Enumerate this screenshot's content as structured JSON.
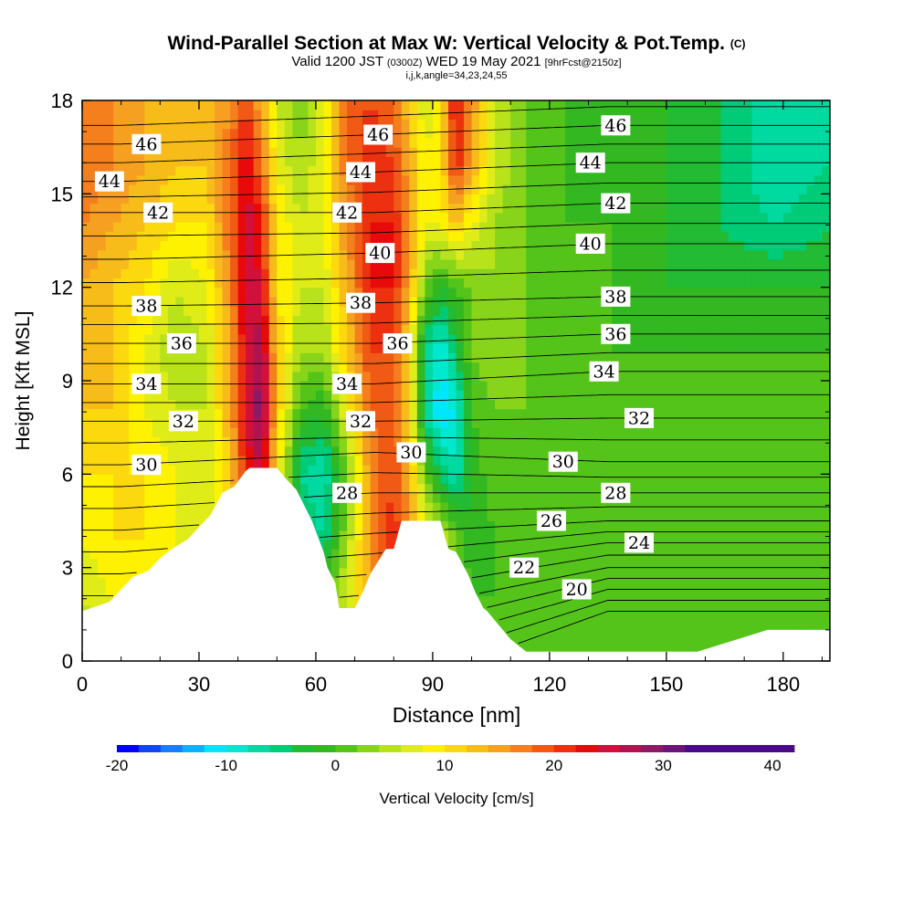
{
  "header": {
    "title": "Wind-Parallel Section at Max W: Vertical Velocity & Pot.Temp.",
    "title_units": "(C)",
    "valid_prefix": "Valid 1200 JST",
    "valid_utc": "(0300Z)",
    "valid_date": "WED 19 May 2021",
    "forecast_tag": "[9hrFcst@2150z]",
    "indices": "i,j,k,angle=34,23,24,55"
  },
  "chart_data": {
    "type": "heatmap",
    "title": "Wind-Parallel Section at Max W: Vertical Velocity & Pot.Temp.",
    "xlabel": "Distance [nm]",
    "ylabel": "Height [Kft MSL]",
    "xlim": [
      0,
      192
    ],
    "ylim": [
      0,
      18
    ],
    "x_ticks": [
      0,
      30,
      60,
      90,
      120,
      150,
      180
    ],
    "y_ticks": [
      0,
      3,
      6,
      9,
      12,
      15,
      18
    ],
    "colorbar": {
      "label": "Vertical Velocity [cm/s]",
      "range": [
        -20,
        42
      ],
      "step": 2,
      "tick_values": [
        -20,
        -10,
        0,
        10,
        20,
        30,
        40
      ],
      "tick_labels": [
        "-20",
        "-10",
        "0",
        "10",
        "20",
        "30",
        "40"
      ],
      "colors": [
        "#0000ff",
        "#1144ff",
        "#1a7dff",
        "#10b0ff",
        "#00e6ff",
        "#00e8d0",
        "#00d9a0",
        "#00cc77",
        "#22bb33",
        "#33b822",
        "#55c41a",
        "#88d41a",
        "#b8e21a",
        "#e0ec18",
        "#fff200",
        "#fcd80f",
        "#f8bc1a",
        "#f5a020",
        "#f57f1c",
        "#f05a14",
        "#ec3010",
        "#e80a0a",
        "#d2103c",
        "#b01450",
        "#8c1a64",
        "#6c1478",
        "#4a0a8a"
      ]
    },
    "vertical_velocity_cm_s": {
      "x_nm": [
        0,
        8,
        16,
        24,
        32,
        38,
        42,
        46,
        50,
        56,
        62,
        68,
        74,
        80,
        84,
        88,
        92,
        96,
        100,
        106,
        114,
        124,
        136,
        150,
        164,
        178,
        192
      ],
      "z_kft": [
        0,
        2,
        4,
        6,
        8,
        10,
        12,
        14,
        16,
        18
      ],
      "values": [
        [
          4,
          6,
          8,
          8,
          5,
          6,
          10,
          14,
          8,
          4,
          6,
          8,
          12,
          18,
          14,
          10,
          10,
          6,
          2,
          2,
          2,
          2,
          0,
          0,
          0,
          0,
          0
        ],
        [
          6,
          8,
          10,
          8,
          6,
          8,
          14,
          18,
          10,
          2,
          2,
          6,
          14,
          22,
          18,
          10,
          8,
          4,
          0,
          0,
          0,
          0,
          0,
          0,
          0,
          0,
          0
        ],
        [
          8,
          10,
          10,
          8,
          6,
          10,
          18,
          22,
          10,
          -4,
          -6,
          4,
          16,
          22,
          16,
          8,
          6,
          2,
          -2,
          0,
          0,
          0,
          0,
          0,
          0,
          0,
          0
        ],
        [
          10,
          10,
          10,
          8,
          6,
          12,
          22,
          26,
          10,
          -6,
          -8,
          2,
          16,
          20,
          14,
          2,
          -4,
          -8,
          -2,
          2,
          0,
          0,
          0,
          0,
          0,
          0,
          0
        ],
        [
          12,
          12,
          8,
          6,
          6,
          14,
          24,
          30,
          12,
          0,
          -2,
          8,
          18,
          20,
          10,
          -6,
          -12,
          -10,
          0,
          2,
          2,
          0,
          0,
          0,
          0,
          0,
          0
        ],
        [
          12,
          12,
          8,
          4,
          6,
          14,
          24,
          28,
          12,
          4,
          4,
          12,
          20,
          20,
          10,
          -6,
          -10,
          -4,
          2,
          4,
          2,
          0,
          0,
          0,
          0,
          0,
          0
        ],
        [
          14,
          12,
          10,
          6,
          8,
          16,
          26,
          24,
          10,
          6,
          6,
          14,
          22,
          22,
          14,
          2,
          -2,
          0,
          2,
          4,
          2,
          0,
          0,
          -2,
          -2,
          -2,
          -2
        ],
        [
          16,
          14,
          12,
          10,
          10,
          18,
          26,
          22,
          10,
          6,
          8,
          16,
          22,
          22,
          16,
          8,
          8,
          12,
          8,
          4,
          2,
          0,
          0,
          -2,
          -4,
          -6,
          -4
        ],
        [
          18,
          16,
          14,
          12,
          12,
          18,
          24,
          18,
          8,
          4,
          8,
          18,
          22,
          20,
          14,
          8,
          10,
          22,
          14,
          6,
          2,
          0,
          -2,
          -2,
          -4,
          -8,
          -6
        ],
        [
          16,
          16,
          14,
          12,
          12,
          16,
          20,
          14,
          6,
          2,
          8,
          18,
          20,
          18,
          12,
          6,
          10,
          24,
          16,
          6,
          2,
          0,
          0,
          -2,
          -4,
          -8,
          -6
        ]
      ]
    },
    "terrain_kft": {
      "x_nm": [
        0,
        7,
        10,
        13,
        17,
        20,
        23,
        27,
        30,
        33,
        36,
        39,
        42,
        43,
        50,
        52,
        55,
        57,
        59,
        62,
        63,
        65,
        66,
        70,
        72,
        74,
        76,
        78,
        80,
        82,
        87,
        92,
        94,
        96,
        99,
        101,
        103,
        104,
        106,
        108,
        110,
        114,
        158,
        176,
        192
      ],
      "z": [
        1.6,
        1.9,
        2.3,
        2.7,
        2.9,
        3.3,
        3.6,
        3.9,
        4.3,
        4.7,
        5.4,
        5.6,
        6.1,
        6.2,
        6.2,
        5.9,
        5.5,
        5.0,
        4.5,
        3.5,
        3.0,
        2.5,
        1.7,
        1.7,
        2.2,
        2.8,
        3.2,
        3.6,
        3.6,
        4.5,
        4.5,
        4.5,
        3.6,
        3.5,
        2.8,
        2.2,
        1.7,
        1.6,
        1.3,
        1.0,
        0.7,
        0.3,
        0.3,
        1.0,
        1.0
      ]
    },
    "potential_temperature_C": {
      "contour_interval": 1,
      "levels": [
        18,
        19,
        20,
        21,
        22,
        23,
        24,
        25,
        26,
        27,
        28,
        29,
        30,
        31,
        32,
        33,
        34,
        35,
        36,
        37,
        38,
        39,
        40,
        41,
        42,
        43,
        44,
        45,
        46,
        47
      ],
      "labels": [
        {
          "text": "46",
          "x": 16.5,
          "z": 16.6
        },
        {
          "text": "44",
          "x": 7,
          "z": 15.4
        },
        {
          "text": "42",
          "x": 19.5,
          "z": 14.4
        },
        {
          "text": "38",
          "x": 16.5,
          "z": 11.4
        },
        {
          "text": "36",
          "x": 25.5,
          "z": 10.2
        },
        {
          "text": "34",
          "x": 16.5,
          "z": 8.9
        },
        {
          "text": "32",
          "x": 26,
          "z": 7.7
        },
        {
          "text": "30",
          "x": 16.5,
          "z": 6.3
        },
        {
          "text": "46",
          "x": 76,
          "z": 16.9
        },
        {
          "text": "44",
          "x": 71.5,
          "z": 15.7
        },
        {
          "text": "42",
          "x": 68,
          "z": 14.4
        },
        {
          "text": "40",
          "x": 76.5,
          "z": 13.1
        },
        {
          "text": "38",
          "x": 71.5,
          "z": 11.5
        },
        {
          "text": "36",
          "x": 81,
          "z": 10.2
        },
        {
          "text": "34",
          "x": 68,
          "z": 8.9
        },
        {
          "text": "32",
          "x": 71.5,
          "z": 7.7
        },
        {
          "text": "30",
          "x": 84.5,
          "z": 6.7
        },
        {
          "text": "28",
          "x": 68,
          "z": 5.4
        },
        {
          "text": "46",
          "x": 137,
          "z": 17.2
        },
        {
          "text": "44",
          "x": 130.5,
          "z": 16.0
        },
        {
          "text": "42",
          "x": 137,
          "z": 14.7
        },
        {
          "text": "40",
          "x": 130.5,
          "z": 13.4
        },
        {
          "text": "38",
          "x": 137,
          "z": 11.7
        },
        {
          "text": "36",
          "x": 137,
          "z": 10.5
        },
        {
          "text": "34",
          "x": 134,
          "z": 9.3
        },
        {
          "text": "32",
          "x": 143,
          "z": 7.8
        },
        {
          "text": "30",
          "x": 123.5,
          "z": 6.4
        },
        {
          "text": "28",
          "x": 137,
          "z": 5.4
        },
        {
          "text": "26",
          "x": 120.5,
          "z": 4.5
        },
        {
          "text": "24",
          "x": 143,
          "z": 3.8
        },
        {
          "text": "22",
          "x": 113.5,
          "z": 3.0
        },
        {
          "text": "20",
          "x": 127,
          "z": 2.3
        }
      ]
    }
  }
}
